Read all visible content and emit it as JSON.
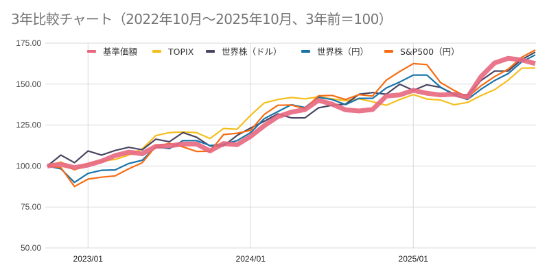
{
  "chart_data": {
    "type": "line",
    "title": "3年比較チャート（2022年10月～2025年10月、3年前＝100）",
    "xlabel": "",
    "ylabel": "",
    "ylim": [
      50,
      175
    ],
    "yticks": [
      "50.00",
      "75.00",
      "100.00",
      "125.00",
      "150.00",
      "175.00"
    ],
    "ytick_values": [
      50,
      75,
      100,
      125,
      150,
      175
    ],
    "x_start": "2022/10",
    "x_end": "2025/10",
    "xticks": [
      {
        "label": "2023/01",
        "index": 3
      },
      {
        "label": "2024/01",
        "index": 15
      },
      {
        "label": "2025/01",
        "index": 27
      }
    ],
    "grid": true,
    "legend_position": "top",
    "series": [
      {
        "name": "TOPIX",
        "color": "#f5be1c",
        "values": [
          100,
          102.5,
          97.5,
          101.5,
          103,
          104,
          106.7,
          110.5,
          118.5,
          120.4,
          120.8,
          120.4,
          116.8,
          122.9,
          122.5,
          131,
          138.5,
          140.6,
          141.8,
          141,
          142.2,
          141,
          139.9,
          141,
          139.2,
          137.1,
          140.6,
          143.6,
          140.9,
          140.3,
          137.4,
          138.8,
          143,
          146.6,
          152.4,
          159.7,
          159.8
        ]
      },
      {
        "name": "世界株（ドル）",
        "color": "#4a4560",
        "values": [
          100,
          106.7,
          102,
          109.2,
          106.7,
          109.5,
          111.4,
          109.9,
          116.4,
          114.8,
          120.4,
          117.6,
          112.2,
          112.3,
          118.7,
          123.2,
          127.3,
          131.8,
          129.4,
          129.4,
          135.5,
          137.1,
          137.8,
          143.8,
          144.8,
          143.8,
          149.9,
          146.2,
          149.6,
          148,
          144,
          143.4,
          152.2,
          158,
          158,
          165,
          169.5
        ]
      },
      {
        "name": "世界株（円）",
        "color": "#1873aa",
        "values": [
          100,
          98.3,
          90,
          95.5,
          97.4,
          97.6,
          101.5,
          103.5,
          111.7,
          110.6,
          115.5,
          115.5,
          112.5,
          113.3,
          115.5,
          120.4,
          128.9,
          133.2,
          137.4,
          135.7,
          142,
          140.6,
          137.5,
          141.3,
          141.3,
          147.6,
          151.3,
          155.5,
          155.5,
          148.2,
          143.4,
          140.6,
          146.9,
          152.2,
          156.4,
          163.6,
          167.8
        ]
      },
      {
        "name": "S&P500（円）",
        "color": "#f56c13",
        "values": [
          100,
          99,
          87.5,
          92,
          93.2,
          94,
          98.3,
          102,
          112,
          113.8,
          111.7,
          108.9,
          109,
          119.2,
          120,
          121.8,
          131.5,
          137.1,
          137.2,
          135,
          142.8,
          143.1,
          140.6,
          143.6,
          142.7,
          152.4,
          157.7,
          162.5,
          161.9,
          151,
          146.2,
          142,
          149,
          154.6,
          159.1,
          166.4,
          170.8
        ]
      },
      {
        "name": "基準価額",
        "color": "#e8677f",
        "values": [
          100,
          101,
          99,
          100.6,
          103,
          106.4,
          108.5,
          107.5,
          112,
          112.3,
          113.4,
          113.4,
          109.2,
          113.7,
          113,
          118.1,
          124.6,
          130.1,
          132.9,
          134.4,
          140.1,
          137.8,
          134.3,
          133.6,
          134.5,
          142.7,
          143.4,
          146.2,
          144.4,
          143.4,
          143.8,
          142,
          154.6,
          162.9,
          165.7,
          164.7,
          162.5
        ]
      }
    ],
    "legend_order": [
      "基準価額",
      "TOPIX",
      "世界株（ドル）",
      "世界株（円）",
      "S&P500（円）"
    ]
  }
}
